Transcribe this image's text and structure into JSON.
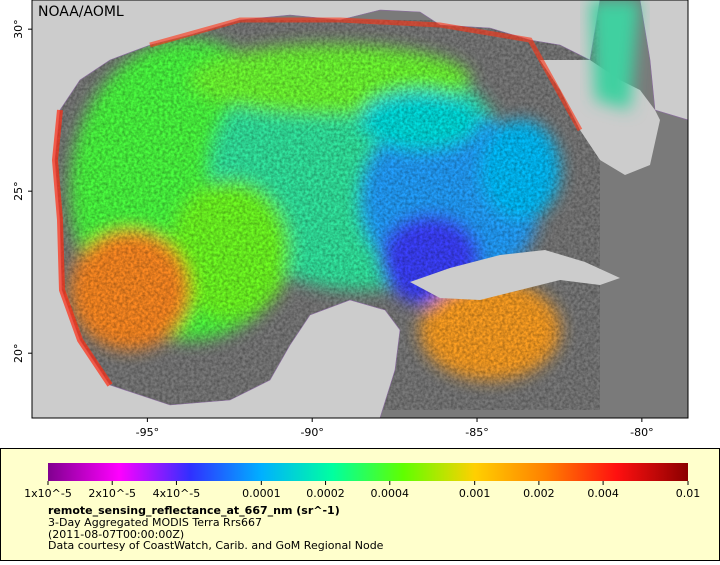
{
  "map": {
    "source_label": "NOAA/AOML",
    "xlim": [
      -98.5,
      -78.6
    ],
    "ylim": [
      18.0,
      30.9
    ],
    "xticks": [
      {
        "value": -95,
        "label": "-95°"
      },
      {
        "value": -90,
        "label": "-90°"
      },
      {
        "value": -85,
        "label": "-85°"
      },
      {
        "value": -80,
        "label": "-80°"
      }
    ],
    "yticks": [
      {
        "value": 20,
        "label": "20°"
      },
      {
        "value": 25,
        "label": "25°"
      },
      {
        "value": 30,
        "label": "30°"
      }
    ]
  },
  "colorbar": {
    "scale": "log",
    "lim": [
      1e-05,
      0.01
    ],
    "ticks": [
      {
        "value": 1e-05,
        "label": "1x10^-5"
      },
      {
        "value": 2e-05,
        "label": "2x10^-5"
      },
      {
        "value": 4e-05,
        "label": "4x10^-5"
      },
      0.0001,
      0.0002,
      0.0004,
      0.001,
      0.002,
      0.004,
      0.01
    ],
    "colors": [
      "#80008f",
      "#ff00ff",
      "#3030ff",
      "#00b0ff",
      "#00ffa0",
      "#60ff00",
      "#ffd000",
      "#ff8000",
      "#ff1010",
      "#8b0000"
    ],
    "title": "remote_sensing_reflectance_at_667_nm (sr^-1)",
    "subtitle": "3-Day Aggregated MODIS Terra Rrs667",
    "date": "(2011-08-07T00:00:00Z)",
    "credit": "Data courtesy of CoastWatch, Carib. and GoM Regional Node"
  }
}
